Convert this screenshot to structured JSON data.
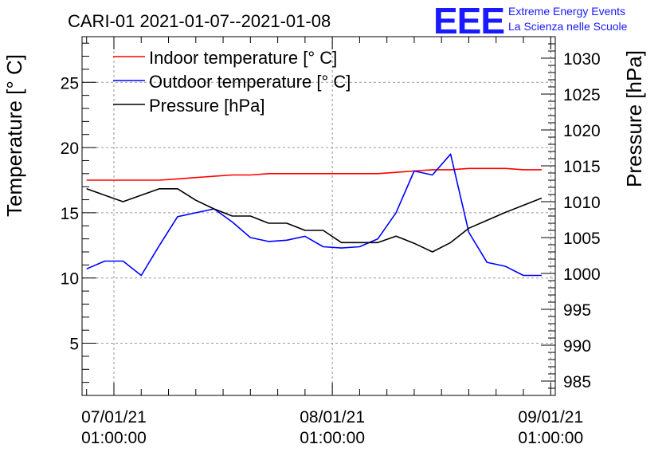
{
  "chart_data": {
    "type": "line",
    "title": "CARI-01 2021-01-07--2021-01-08",
    "ylabel_left": "Temperature [° C]",
    "ylabel_right": "Pressure [hPa]",
    "ylim_left": [
      1,
      28.5
    ],
    "ylim_right": [
      983,
      1033
    ],
    "xlim_hours": [
      -3.5,
      48.5
    ],
    "grid": true,
    "legend_position": "top-left",
    "x_ticks": [
      {
        "hour": 0,
        "date": "07/01/21",
        "time": "01:00:00"
      },
      {
        "hour": 24,
        "date": "08/01/21",
        "time": "01:00:00"
      },
      {
        "hour": 48,
        "date": "09/01/21",
        "time": "01:00:00"
      }
    ],
    "y_ticks_left": [
      5,
      10,
      15,
      20,
      25
    ],
    "y_ticks_right": [
      985,
      990,
      995,
      1000,
      1005,
      1010,
      1015,
      1020,
      1025,
      1030
    ],
    "series": [
      {
        "name": "Indoor temperature [° C]",
        "axis": "left",
        "color": "#ff0000",
        "x": [
          -3,
          -1,
          1,
          3,
          5,
          7,
          9,
          11,
          13,
          15,
          17,
          19,
          21,
          23,
          25,
          27,
          29,
          31,
          33,
          35,
          37,
          39,
          41,
          43,
          45,
          47
        ],
        "y": [
          17.5,
          17.5,
          17.5,
          17.5,
          17.5,
          17.6,
          17.7,
          17.8,
          17.9,
          17.9,
          18.0,
          18.0,
          18.0,
          18.0,
          18.0,
          18.0,
          18.0,
          18.1,
          18.2,
          18.3,
          18.3,
          18.4,
          18.4,
          18.4,
          18.3,
          18.3
        ]
      },
      {
        "name": "Outdoor temperature [° C]",
        "axis": "left",
        "color": "#0000ff",
        "x": [
          -3,
          -1,
          1,
          3,
          5,
          7,
          9,
          11,
          13,
          15,
          17,
          19,
          21,
          23,
          25,
          27,
          29,
          31,
          33,
          35,
          37,
          39,
          41,
          43,
          45,
          47
        ],
        "y": [
          10.7,
          11.3,
          11.3,
          10.2,
          12.5,
          14.7,
          15.0,
          15.3,
          14.3,
          13.1,
          12.8,
          12.9,
          13.2,
          12.4,
          12.3,
          12.4,
          13.0,
          15.0,
          18.2,
          17.9,
          19.5,
          13.5,
          11.2,
          10.9,
          10.2,
          10.2
        ]
      },
      {
        "name": "Pressure [hPa]",
        "axis": "right",
        "color": "#000000",
        "x": [
          -3,
          1,
          5,
          7,
          9,
          11,
          13,
          15,
          17,
          19,
          21,
          23,
          25,
          27,
          29,
          31,
          33,
          35,
          37,
          39,
          41,
          43,
          45,
          47
        ],
        "y": [
          1011.8,
          1010.0,
          1011.8,
          1011.8,
          1010.2,
          1009.0,
          1008.0,
          1008.0,
          1007.0,
          1007.0,
          1006.0,
          1006.0,
          1004.3,
          1004.3,
          1004.3,
          1005.2,
          1004.2,
          1003.0,
          1004.3,
          1006.3,
          1007.4,
          1008.5,
          1009.5,
          1010.5
        ]
      }
    ]
  },
  "logo": {
    "text": "EEE",
    "line1": "Extreme Energy Events",
    "line2": "La Scienza nelle Scuole"
  }
}
